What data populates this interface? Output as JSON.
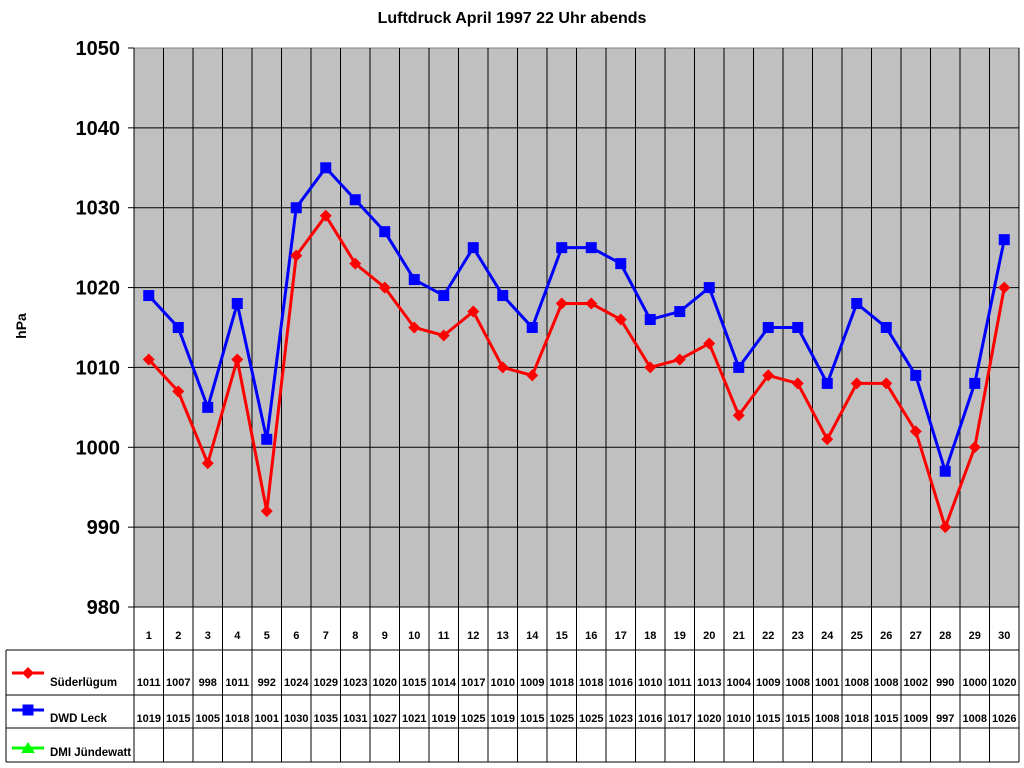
{
  "chart_data": {
    "type": "line",
    "title": "Luftdruck April 1997 22 Uhr abends",
    "xlabel": "",
    "ylabel": "hPa",
    "ylim": [
      980,
      1050
    ],
    "yticks": [
      980,
      990,
      1000,
      1010,
      1020,
      1030,
      1040,
      1050
    ],
    "grid": true,
    "legend_position": "table-left",
    "categories": [
      "1",
      "2",
      "3",
      "4",
      "5",
      "6",
      "7",
      "8",
      "9",
      "10",
      "11",
      "12",
      "13",
      "14",
      "15",
      "16",
      "17",
      "18",
      "19",
      "20",
      "21",
      "22",
      "23",
      "24",
      "25",
      "26",
      "27",
      "28",
      "29",
      "30"
    ],
    "series": [
      {
        "name": "Süderlügum",
        "color": "#ff0000",
        "marker": "diamond",
        "values": [
          1011,
          1007,
          998,
          1011,
          992,
          1024,
          1029,
          1023,
          1020,
          1015,
          1014,
          1017,
          1010,
          1009,
          1018,
          1018,
          1016,
          1010,
          1011,
          1013,
          1004,
          1009,
          1008,
          1001,
          1008,
          1008,
          1002,
          990,
          1000,
          1020
        ]
      },
      {
        "name": "DWD Leck",
        "color": "#0000ff",
        "marker": "square",
        "values": [
          1019,
          1015,
          1005,
          1018,
          1001,
          1030,
          1035,
          1031,
          1027,
          1021,
          1019,
          1025,
          1019,
          1015,
          1025,
          1025,
          1023,
          1016,
          1017,
          1020,
          1010,
          1015,
          1015,
          1008,
          1018,
          1015,
          1009,
          997,
          1008,
          1026
        ]
      },
      {
        "name": "DMI Jündewatt",
        "color": "#00ff00",
        "marker": "triangle",
        "values": [
          null,
          null,
          null,
          null,
          null,
          null,
          null,
          null,
          null,
          null,
          null,
          null,
          null,
          null,
          null,
          null,
          null,
          null,
          null,
          null,
          null,
          null,
          null,
          null,
          null,
          null,
          null,
          null,
          null,
          null
        ]
      }
    ],
    "plot_background": "#c0c0c0"
  }
}
